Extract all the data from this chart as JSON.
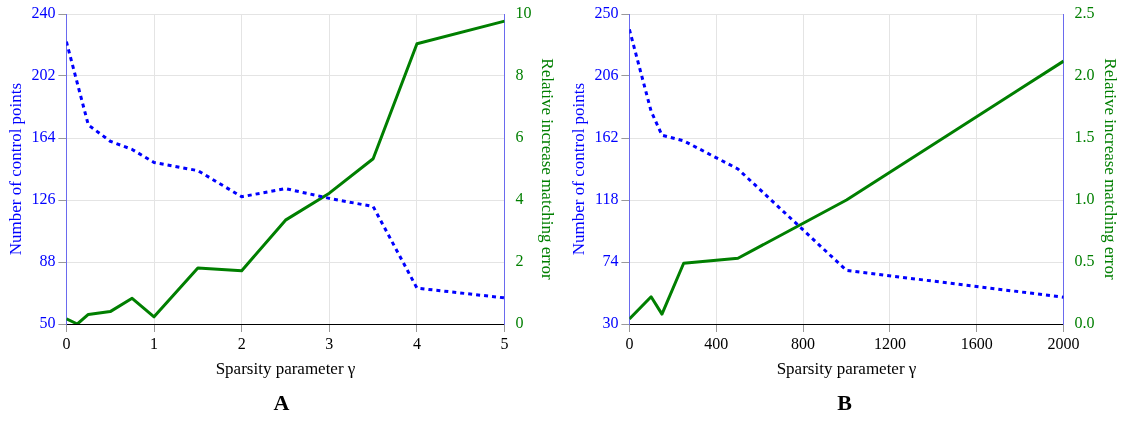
{
  "chart_data": [
    {
      "type": "line",
      "title": "A",
      "xlabel": "Sparsity parameter γ",
      "ylabel": "Number of control points",
      "y2label": "Relative increase matching error",
      "xlim": [
        0,
        5
      ],
      "xticks": [
        0,
        1,
        2,
        3,
        4,
        5
      ],
      "ylim": [
        50,
        240
      ],
      "yticks": [
        50,
        88,
        126,
        164,
        202,
        240
      ],
      "y2lim": [
        0,
        10
      ],
      "y2ticks": [
        0,
        2,
        4,
        6,
        8,
        10
      ],
      "grid": true,
      "series": [
        {
          "color": "#0000ff",
          "line_style": "dotted",
          "axis": "y",
          "x": [
            0,
            0.25,
            0.5,
            0.75,
            1,
            1.5,
            2,
            2.5,
            3,
            3.5,
            4,
            5
          ],
          "values": [
            223,
            172,
            162,
            157,
            149,
            144,
            128,
            133,
            127,
            122,
            72,
            66
          ]
        },
        {
          "color": "#007f00",
          "line_style": "solid",
          "axis": "y2",
          "x": [
            0,
            0.125,
            0.25,
            0.5,
            0.75,
            1,
            1.5,
            2,
            2.5,
            3,
            3.5,
            4,
            5
          ],
          "values": [
            0.17,
            0,
            0.31,
            0.4,
            0.83,
            0.23,
            1.81,
            1.72,
            3.35,
            4.22,
            5.33,
            9.04,
            9.77
          ]
        }
      ]
    },
    {
      "type": "line",
      "title": "B",
      "xlabel": "Sparsity parameter γ",
      "ylabel": "Number of control points",
      "y2label": "Relative increase matching error",
      "xlim": [
        0,
        2000
      ],
      "xticks": [
        0,
        400,
        800,
        1200,
        1600,
        2000
      ],
      "ylim": [
        30,
        250
      ],
      "yticks": [
        30,
        74,
        118,
        162,
        206,
        250
      ],
      "y2lim": [
        0,
        2.5
      ],
      "y2ticks": [
        {
          "value": 0,
          "label": "0.0"
        },
        {
          "value": 0.5,
          "label": "0.5"
        },
        {
          "value": 1,
          "label": "1.0"
        },
        {
          "value": 1.5,
          "label": "1.5"
        },
        {
          "value": 2,
          "label": "2.0"
        },
        {
          "value": 2.5,
          "label": "2.5"
        }
      ],
      "grid": true,
      "series": [
        {
          "color": "#0000ff",
          "line_style": "dotted",
          "axis": "y",
          "x": [
            0,
            100,
            150,
            250,
            500,
            1000,
            2000
          ],
          "values": [
            239,
            181,
            164,
            160,
            140,
            68,
            49
          ]
        },
        {
          "color": "#007f00",
          "line_style": "solid",
          "axis": "y2",
          "x": [
            0,
            100,
            150,
            250,
            500,
            1000,
            2000
          ],
          "values": [
            0.04,
            0.22,
            0.08,
            0.49,
            0.53,
            1.0,
            2.12
          ]
        }
      ]
    }
  ]
}
